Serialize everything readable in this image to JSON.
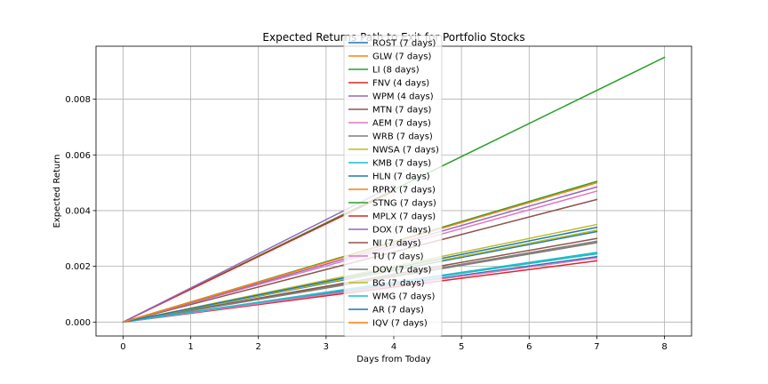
{
  "chart_data": {
    "type": "line",
    "title": "Expected Returns Path to Exit for Portfolio Stocks",
    "xlabel": "Days from Today",
    "ylabel": "Expected Return",
    "xlim": [
      -0.4,
      8.4
    ],
    "ylim": [
      -0.0005,
      0.0099
    ],
    "xticks": [
      0,
      1,
      2,
      3,
      4,
      5,
      6,
      7,
      8
    ],
    "xtick_labels": [
      "0",
      "1",
      "2",
      "3",
      "4",
      "5",
      "6",
      "7",
      "8"
    ],
    "yticks": [
      0,
      0.002,
      0.004,
      0.006,
      0.008
    ],
    "ytick_labels": [
      "0.000",
      "0.002",
      "0.004",
      "0.006",
      "0.008"
    ],
    "grid": true,
    "legend_position": "top-center",
    "series": [
      {
        "name": "ROST (7 days)",
        "color": "#1f77b4",
        "x": [
          0,
          7
        ],
        "y": [
          0,
          0.00325
        ]
      },
      {
        "name": "GLW (7 days)",
        "color": "#ff7f0e",
        "x": [
          0,
          7
        ],
        "y": [
          0,
          0.00285
        ]
      },
      {
        "name": "LI (8 days)",
        "color": "#2ca02c",
        "x": [
          0,
          8
        ],
        "y": [
          0,
          0.0095
        ]
      },
      {
        "name": "FNV (4 days)",
        "color": "#d62728",
        "x": [
          0,
          4
        ],
        "y": [
          0,
          0.0047
        ]
      },
      {
        "name": "WPM (4 days)",
        "color": "#9467bd",
        "x": [
          0,
          4
        ],
        "y": [
          0,
          0.0049
        ]
      },
      {
        "name": "MTN (7 days)",
        "color": "#8c564b",
        "x": [
          0,
          7
        ],
        "y": [
          0,
          0.0044
        ]
      },
      {
        "name": "AEM (7 days)",
        "color": "#e377c2",
        "x": [
          0,
          7
        ],
        "y": [
          0,
          0.0047
        ]
      },
      {
        "name": "WRB (7 days)",
        "color": "#7f7f7f",
        "x": [
          0,
          7
        ],
        "y": [
          0,
          0.0029
        ]
      },
      {
        "name": "NWSA (7 days)",
        "color": "#bcbd22",
        "x": [
          0,
          7
        ],
        "y": [
          0,
          0.0035
        ]
      },
      {
        "name": "KMB (7 days)",
        "color": "#17becf",
        "x": [
          0,
          7
        ],
        "y": [
          0,
          0.0025
        ]
      },
      {
        "name": "HLN (7 days)",
        "color": "#1f77b4",
        "x": [
          0,
          7
        ],
        "y": [
          0,
          0.00235
        ]
      },
      {
        "name": "RPRX (7 days)",
        "color": "#ff7f0e",
        "x": [
          0,
          7
        ],
        "y": [
          0,
          0.00245
        ]
      },
      {
        "name": "STNG (7 days)",
        "color": "#2ca02c",
        "x": [
          0,
          7
        ],
        "y": [
          0,
          0.00505
        ]
      },
      {
        "name": "MPLX (7 days)",
        "color": "#d62728",
        "x": [
          0,
          7
        ],
        "y": [
          0,
          0.0022
        ]
      },
      {
        "name": "DOX (7 days)",
        "color": "#9467bd",
        "x": [
          0,
          7
        ],
        "y": [
          0,
          0.00485
        ]
      },
      {
        "name": "NI (7 days)",
        "color": "#8c564b",
        "x": [
          0,
          7
        ],
        "y": [
          0,
          0.003
        ]
      },
      {
        "name": "TU (7 days)",
        "color": "#e377c2",
        "x": [
          0,
          7
        ],
        "y": [
          0,
          0.0023
        ]
      },
      {
        "name": "DOV (7 days)",
        "color": "#7f7f7f",
        "x": [
          0,
          7
        ],
        "y": [
          0,
          0.00285
        ]
      },
      {
        "name": "BG (7 days)",
        "color": "#bcbd22",
        "x": [
          0,
          7
        ],
        "y": [
          0,
          0.0033
        ]
      },
      {
        "name": "WMG (7 days)",
        "color": "#17becf",
        "x": [
          0,
          7
        ],
        "y": [
          0,
          0.00245
        ]
      },
      {
        "name": "AR (7 days)",
        "color": "#1f77b4",
        "x": [
          0,
          7
        ],
        "y": [
          0,
          0.0034
        ]
      },
      {
        "name": "IQV (7 days)",
        "color": "#ff7f0e",
        "x": [
          0,
          7
        ],
        "y": [
          0,
          0.005
        ]
      }
    ]
  }
}
